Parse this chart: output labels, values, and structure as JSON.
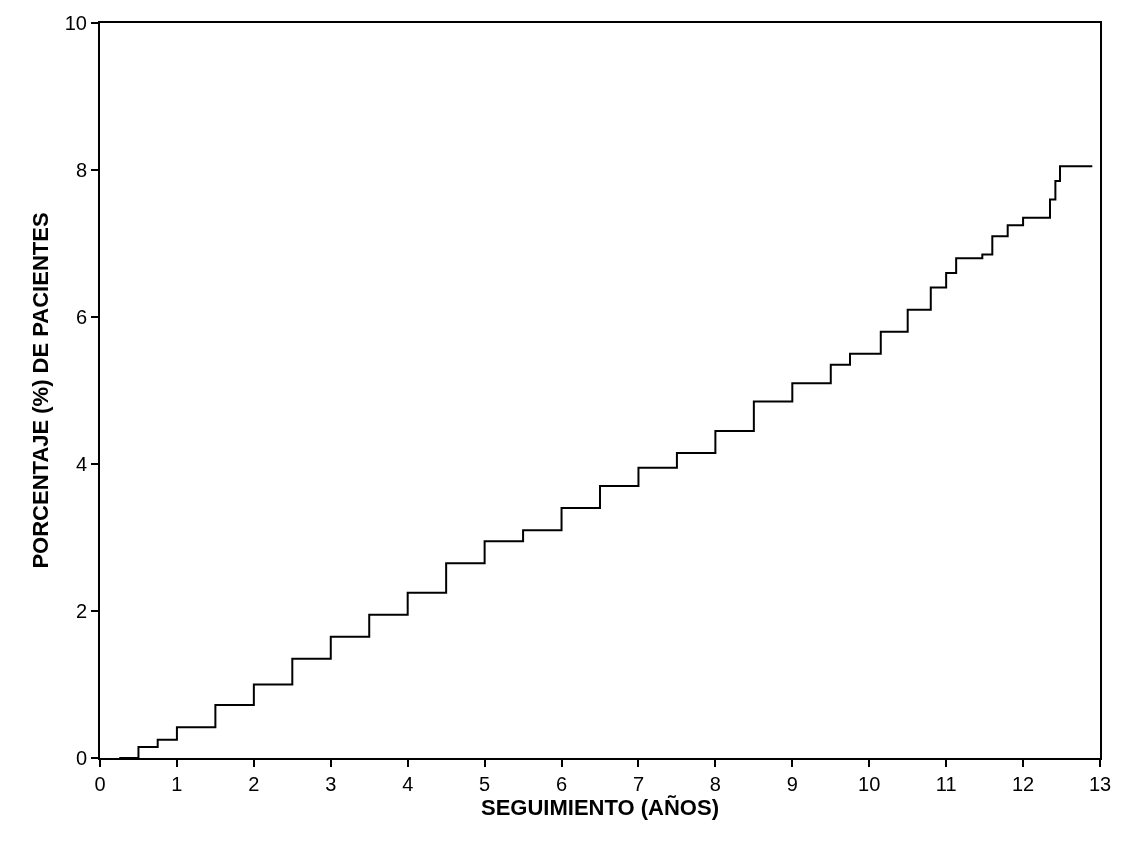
{
  "chart_data": {
    "type": "step",
    "xlabel": "SEGUIMIENTO (AÑOS)",
    "ylabel": "PORCENTAJE (%) DE PACIENTES",
    "x": [
      0.25,
      0.5,
      0.75,
      1,
      1.5,
      2,
      2.5,
      3,
      3.5,
      4,
      4.5,
      5,
      5.5,
      6,
      6.5,
      7,
      7.5,
      8,
      8.5,
      9,
      9.5,
      9.75,
      10.15,
      10.5,
      10.8,
      11.0,
      11.13,
      11.47,
      11.6,
      11.8,
      12.0,
      12.35,
      12.42,
      12.48,
      12.9
    ],
    "series": [
      {
        "color": "#000000",
        "values": [
          0,
          0.15,
          0.25,
          0.42,
          0.72,
          1.0,
          1.35,
          1.65,
          1.95,
          2.25,
          2.65,
          2.95,
          3.1,
          3.4,
          3.7,
          3.95,
          4.15,
          4.45,
          4.85,
          5.1,
          5.35,
          5.5,
          5.8,
          6.1,
          6.4,
          6.6,
          6.8,
          6.85,
          7.1,
          7.25,
          7.35,
          7.6,
          7.85,
          8.05,
          8.05
        ]
      }
    ],
    "xlim": [
      0,
      13
    ],
    "xticks": [
      0,
      1,
      2,
      3,
      4,
      5,
      6,
      7,
      8,
      9,
      10,
      11,
      12,
      13
    ],
    "ylim": [
      0,
      10
    ],
    "yticks": [
      0,
      2,
      4,
      6,
      8,
      10
    ],
    "marker": "none",
    "line_style": "solid"
  }
}
